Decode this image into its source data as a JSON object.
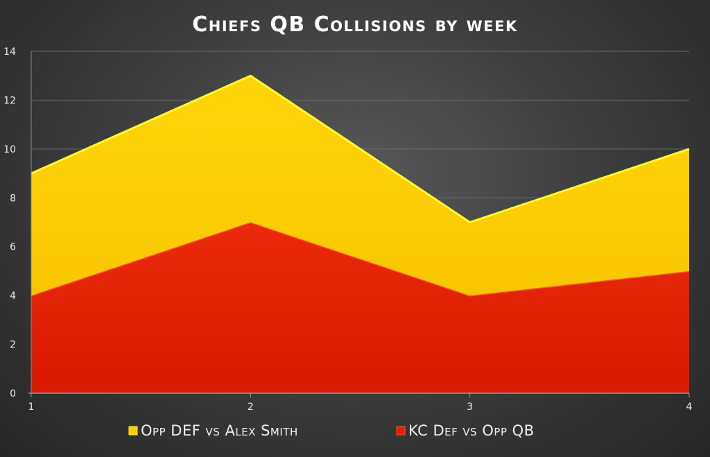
{
  "chart_data": {
    "type": "area",
    "stacked": true,
    "title": "Chiefs QB Collisions by week",
    "x": [
      1,
      2,
      3,
      4
    ],
    "ylim": [
      0,
      14
    ],
    "yticks": [
      0,
      2,
      4,
      6,
      8,
      10,
      12,
      14
    ],
    "grid": true,
    "legend_position": "bottom",
    "series": [
      {
        "name": "KC Def vs Opp QB",
        "values": [
          4,
          7,
          4,
          5
        ],
        "color": "#e02000"
      },
      {
        "name": "Opp DEF vs Alex Smith",
        "values": [
          5,
          6,
          3,
          5
        ],
        "color": "#ffcc00"
      }
    ],
    "legend_order": [
      "Opp DEF vs Alex Smith",
      "KC Def vs Opp QB"
    ]
  }
}
